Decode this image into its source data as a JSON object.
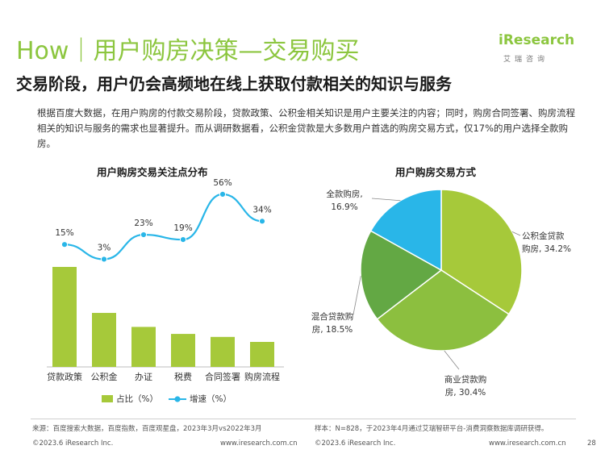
{
  "header": {
    "title": "How｜用户购房决策—交易购买",
    "subtitle": "交易阶段，用户仍会高频地在线上获取付款相关的知识与服务",
    "description": "根据百度大数据，在用户购房的付款交易阶段，贷款政策、公积金相关知识是用户主要关注的内容；同时，购房合同签署、购房流程相关的知识与服务的需求也显著提升。而从调研数据看，公积金贷款是大多数用户首选的购房交易方式，仅17%的用户选择全款购房。"
  },
  "logo": {
    "word": "iResearch",
    "sub": "艾瑞咨询"
  },
  "colors": {
    "green": "#8cc63f",
    "bar": "#a6c93a",
    "line": "#29b6e8",
    "pie_light": "#a6c93a",
    "pie_mid": "#8cbf3f",
    "pie_dark": "#63a844",
    "pie_blue": "#29b6e8"
  },
  "chart_data": [
    {
      "type": "bar",
      "title": "用户购房交易关注点分布",
      "categories": [
        "贷款政策",
        "公积金",
        "办证",
        "税费",
        "合同签署",
        "购房流程"
      ],
      "series": [
        {
          "name": "占比（%）",
          "type": "bar",
          "values": [
            100,
            54,
            40,
            33,
            30,
            25
          ]
        },
        {
          "name": "增速（%）",
          "type": "line",
          "values": [
            15,
            3,
            23,
            19,
            56,
            34
          ],
          "labels": [
            "15%",
            "3%",
            "23%",
            "19%",
            "56%",
            "34%"
          ]
        }
      ],
      "legend": "bottom"
    },
    {
      "type": "pie",
      "title": "用户购房交易方式",
      "slices": [
        {
          "name": "公积金贷款购房",
          "value": 34.2,
          "label_line1": "公积金贷款",
          "label_line2": "购房, 34.2%"
        },
        {
          "name": "商业贷款购房",
          "value": 30.4,
          "label_line1": "商业贷款购",
          "label_line2": "房, 30.4%"
        },
        {
          "name": "混合贷款购房",
          "value": 18.5,
          "label_line1": "混合贷款购",
          "label_line2": "房, 18.5%"
        },
        {
          "name": "全款购房",
          "value": 16.9,
          "label_line1": "全款购房,",
          "label_line2": "16.9%"
        }
      ]
    }
  ],
  "footer": {
    "source_left": "来源：百度搜索大数据，百度指数，百度观星盘，2023年3月vs2022年3月",
    "source_right": "样本：N=828，于2023年4月通过艾瑞智研平台-消费洞察数据库调研获得。",
    "copyright_left": "©2023.6 iResearch Inc.",
    "url_left": "www.iresearch.com.cn",
    "copyright_right": "©2023.6 iResearch Inc.",
    "url_right": "www.iresearch.com.cn",
    "page": "28"
  }
}
